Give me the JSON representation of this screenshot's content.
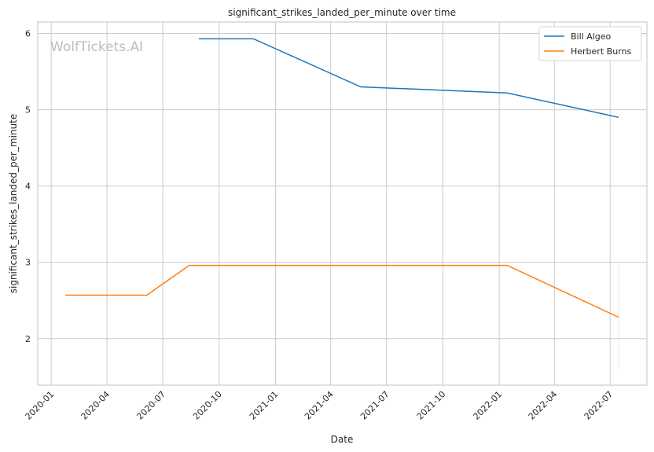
{
  "chart_data": {
    "type": "line",
    "title": "significant_strikes_landed_per_minute over time",
    "xlabel": "Date",
    "ylabel": "significant_strikes_landed_per_minute",
    "watermark": "WolfTickets.AI",
    "xlim": [
      "2019-12-10",
      "2022-08-30"
    ],
    "ylim": [
      1.39,
      6.15
    ],
    "x_ticks": [
      "2020-01",
      "2020-04",
      "2020-07",
      "2020-10",
      "2021-01",
      "2021-04",
      "2021-07",
      "2021-10",
      "2022-01",
      "2022-04",
      "2022-07"
    ],
    "y_ticks": [
      2,
      3,
      4,
      5,
      6
    ],
    "grid": true,
    "legend_placement": "top-right",
    "series": [
      {
        "name": "Bill Algeo",
        "color": "#1f77b4",
        "x": [
          "2020-08-29",
          "2020-11-26",
          "2021-05-20",
          "2022-01-14",
          "2022-07-15"
        ],
        "y": [
          5.93,
          5.93,
          5.3,
          5.22,
          4.9
        ]
      },
      {
        "name": "Herbert Burns",
        "color": "#ff7f0e",
        "x": [
          "2020-01-24",
          "2020-06-05",
          "2020-08-13",
          "2022-01-14",
          "2022-07-15"
        ],
        "y": [
          2.57,
          2.57,
          2.96,
          2.96,
          2.28
        ],
        "interval": {
          "x": "2022-07-15",
          "low": 1.6,
          "high": 2.97
        }
      }
    ]
  }
}
